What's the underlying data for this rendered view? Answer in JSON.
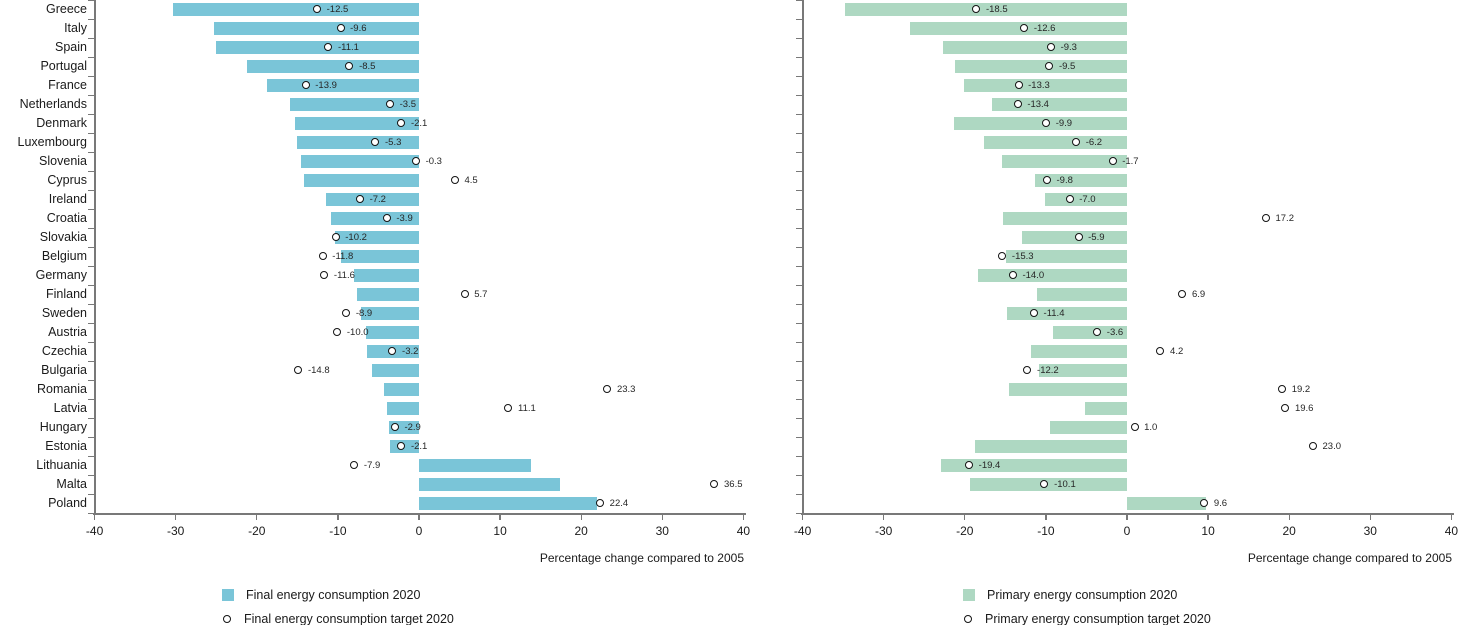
{
  "axis_color": "#787878",
  "chart_data": [
    {
      "type": "bar",
      "orientation": "horizontal",
      "categories": [
        "Greece",
        "Italy",
        "Spain",
        "Portugal",
        "France",
        "Netherlands",
        "Denmark",
        "Luxembourg",
        "Slovenia",
        "Cyprus",
        "Ireland",
        "Croatia",
        "Slovakia",
        "Belgium",
        "Germany",
        "Finland",
        "Sweden",
        "Austria",
        "Czechia",
        "Bulgaria",
        "Romania",
        "Latvia",
        "Hungary",
        "Estonia",
        "Lithuania",
        "Malta",
        "Poland"
      ],
      "series": [
        {
          "name": "Final energy consumption 2020",
          "style": "bar",
          "values": [
            -30.3,
            -25.3,
            -25.0,
            -21.2,
            -18.8,
            -15.9,
            -15.3,
            -15.0,
            -14.6,
            -14.2,
            -11.5,
            -10.8,
            -10.4,
            -9.6,
            -8.0,
            -7.6,
            -7.2,
            -6.5,
            -6.4,
            -5.8,
            -4.3,
            -4.0,
            -3.7,
            -3.6,
            13.8,
            17.4,
            21.9
          ]
        },
        {
          "name": "Final energy consumption target 2020",
          "style": "circle-marker",
          "labels_shown": true,
          "values": [
            -12.5,
            -9.6,
            -11.1,
            -8.5,
            -13.9,
            -3.5,
            -2.1,
            -5.3,
            -0.3,
            4.5,
            -7.2,
            -3.9,
            -10.2,
            -11.8,
            -11.6,
            5.7,
            -8.9,
            -10.0,
            -3.2,
            -14.8,
            23.3,
            11.1,
            -2.9,
            -2.1,
            -7.9,
            36.5,
            22.4
          ]
        }
      ],
      "xlabel": "Percentage change compared to 2005",
      "xlim": [
        -40,
        40
      ],
      "xticks": [
        -40,
        -30,
        -20,
        -10,
        0,
        10,
        20,
        30,
        40
      ],
      "bar_color": "#7ac5d8",
      "show_category_labels": true,
      "legend_position": "bottom",
      "grid": false
    },
    {
      "type": "bar",
      "orientation": "horizontal",
      "categories": [
        "Greece",
        "Italy",
        "Spain",
        "Portugal",
        "France",
        "Netherlands",
        "Denmark",
        "Luxembourg",
        "Slovenia",
        "Cyprus",
        "Ireland",
        "Croatia",
        "Slovakia",
        "Belgium",
        "Germany",
        "Finland",
        "Sweden",
        "Austria",
        "Czechia",
        "Bulgaria",
        "Romania",
        "Latvia",
        "Hungary",
        "Estonia",
        "Lithuania",
        "Malta",
        "Poland"
      ],
      "series": [
        {
          "name": "Primary energy consumption 2020",
          "style": "bar",
          "values": [
            -34.8,
            -26.7,
            -22.7,
            -21.2,
            -20.1,
            -16.7,
            -21.3,
            -17.6,
            -15.4,
            -11.3,
            -10.1,
            -15.3,
            -13.0,
            -14.9,
            -18.4,
            -11.1,
            -14.8,
            -9.1,
            -11.8,
            -10.9,
            -14.5,
            -5.2,
            -9.5,
            -18.8,
            -22.9,
            -19.3,
            9.7
          ]
        },
        {
          "name": "Primary energy consumption target 2020",
          "style": "circle-marker",
          "labels_shown": true,
          "values": [
            -18.5,
            -12.6,
            -9.3,
            -9.5,
            -13.3,
            -13.4,
            -9.9,
            -6.2,
            -1.7,
            -9.8,
            -7.0,
            17.2,
            -5.9,
            -15.3,
            -14.0,
            6.9,
            -11.4,
            -3.6,
            4.2,
            -12.2,
            19.2,
            19.6,
            1.0,
            23.0,
            -19.4,
            -10.1,
            9.6
          ]
        }
      ],
      "xlabel": "Percentage change compared to 2005",
      "xlim": [
        -40,
        40
      ],
      "xticks": [
        -40,
        -30,
        -20,
        -10,
        0,
        10,
        20,
        30,
        40
      ],
      "bar_color": "#aed8c2",
      "show_category_labels": false,
      "legend_position": "bottom",
      "grid": false
    }
  ]
}
